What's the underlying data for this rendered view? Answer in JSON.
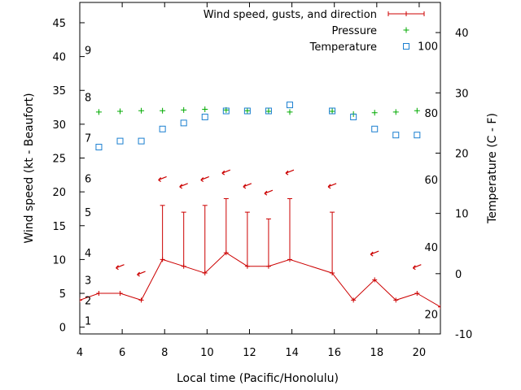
{
  "chart_data": {
    "type": "line",
    "xlabel": "Local time (Pacific/Honolulu)",
    "ylabel_left": "Wind speed (kt - Beaufort)",
    "ylabel_right": "Temperature (C - F)",
    "xlim": [
      4,
      21
    ],
    "ylim_left": [
      -1,
      48
    ],
    "ylim_right": [
      -10,
      45
    ],
    "x_ticks": [
      4,
      6,
      8,
      10,
      12,
      14,
      16,
      18,
      20
    ],
    "y_left_ticks": [
      0,
      5,
      10,
      15,
      20,
      25,
      30,
      35,
      40,
      45
    ],
    "y_right_ticks": [
      -10,
      0,
      10,
      20,
      30,
      40
    ],
    "beaufort_labels": [
      {
        "label": "1",
        "kt": 1
      },
      {
        "label": "2",
        "kt": 4
      },
      {
        "label": "3",
        "kt": 7
      },
      {
        "label": "4",
        "kt": 11
      },
      {
        "label": "5",
        "kt": 17
      },
      {
        "label": "6",
        "kt": 22
      },
      {
        "label": "7",
        "kt": 28
      },
      {
        "label": "8",
        "kt": 34
      },
      {
        "label": "9",
        "kt": 41
      }
    ],
    "fahrenheit_labels": [
      {
        "label": "20",
        "temp_c": -6.7
      },
      {
        "label": "40",
        "temp_c": 4.4
      },
      {
        "label": "60",
        "temp_c": 15.6
      },
      {
        "label": "80",
        "temp_c": 26.7
      },
      {
        "label": "100",
        "temp_c": 37.8
      }
    ],
    "legend": [
      {
        "label": "Wind speed, gusts, and direction",
        "color": "#cc0000"
      },
      {
        "label": "Pressure",
        "color": "#00aa00"
      },
      {
        "label": "Temperature",
        "color": "#1a7fd0"
      }
    ],
    "series": [
      {
        "name": "Wind speed, gusts, and direction",
        "x": [
          4,
          4.9,
          5.9,
          6.9,
          7.9,
          8.9,
          9.9,
          10.9,
          11.9,
          12.9,
          13.9,
          15.9,
          16.9,
          17.9,
          18.9,
          19.9,
          21
        ],
        "speed": [
          4,
          5,
          5,
          4,
          10,
          9,
          8,
          11,
          9,
          9,
          10,
          8,
          4,
          7,
          4,
          5,
          3
        ],
        "gust": [
          null,
          null,
          null,
          null,
          18,
          17,
          18,
          19,
          17,
          16,
          19,
          17,
          null,
          null,
          null,
          null,
          null
        ]
      },
      {
        "name": "Wind direction arrows",
        "x": [
          5.9,
          6.9,
          7.9,
          8.9,
          9.9,
          10.9,
          11.9,
          12.9,
          13.9,
          15.9,
          17.9,
          19.9
        ],
        "y": [
          9,
          8,
          22,
          21,
          22,
          23,
          21,
          20,
          23,
          21,
          11,
          9
        ]
      },
      {
        "name": "Pressure",
        "x": [
          4.9,
          5.9,
          6.9,
          7.9,
          8.9,
          9.9,
          10.9,
          11.9,
          12.9,
          13.9,
          15.9,
          16.9,
          17.9,
          18.9,
          19.9
        ],
        "y": [
          31.8,
          31.9,
          32,
          32,
          32.1,
          32.2,
          32.1,
          32,
          31.9,
          31.8,
          31.9,
          31.5,
          31.7,
          31.8,
          32
        ]
      },
      {
        "name": "Temperature",
        "x": [
          4.9,
          5.9,
          6.9,
          7.9,
          8.9,
          9.9,
          10.9,
          11.9,
          12.9,
          13.9,
          15.9,
          16.9,
          17.9,
          18.9,
          19.9
        ],
        "temp_c": [
          21,
          22,
          22,
          24,
          25,
          26,
          27,
          27,
          27,
          28,
          27,
          26,
          24,
          23,
          23
        ]
      }
    ]
  }
}
